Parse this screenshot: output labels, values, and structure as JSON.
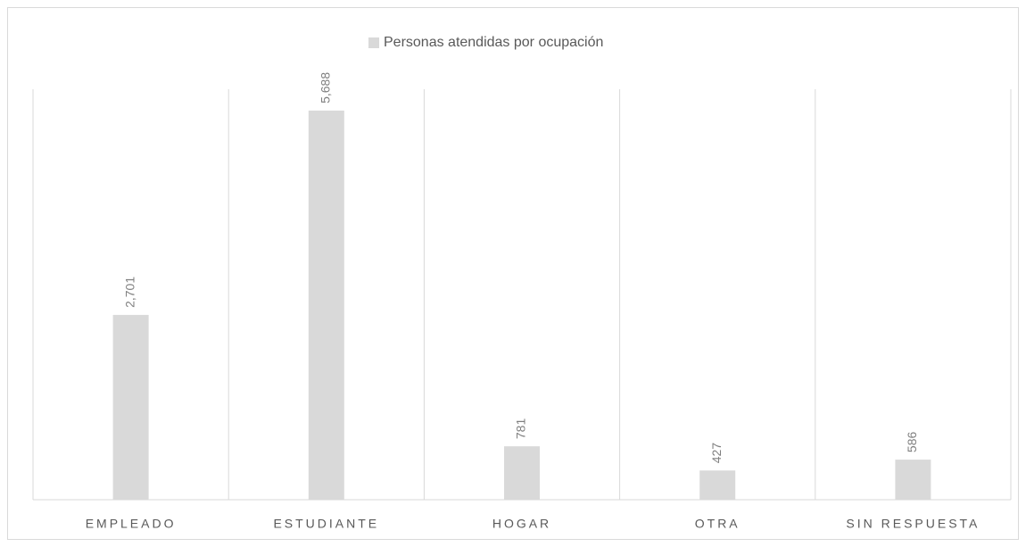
{
  "chart_data": {
    "type": "bar",
    "categories": [
      "EMPLEADO",
      "ESTUDIANTE",
      "HOGAR",
      "OTRA",
      "SIN RESPUESTA"
    ],
    "series": [
      {
        "name": "Personas atendidas por ocupación",
        "color": "#d9d9d9",
        "values": [
          2701,
          5688,
          781,
          427,
          586
        ],
        "value_labels": [
          "2,701",
          "5,688",
          "781",
          "427",
          "586"
        ]
      }
    ],
    "ylim": [
      0,
      6000
    ],
    "legend": "top"
  }
}
